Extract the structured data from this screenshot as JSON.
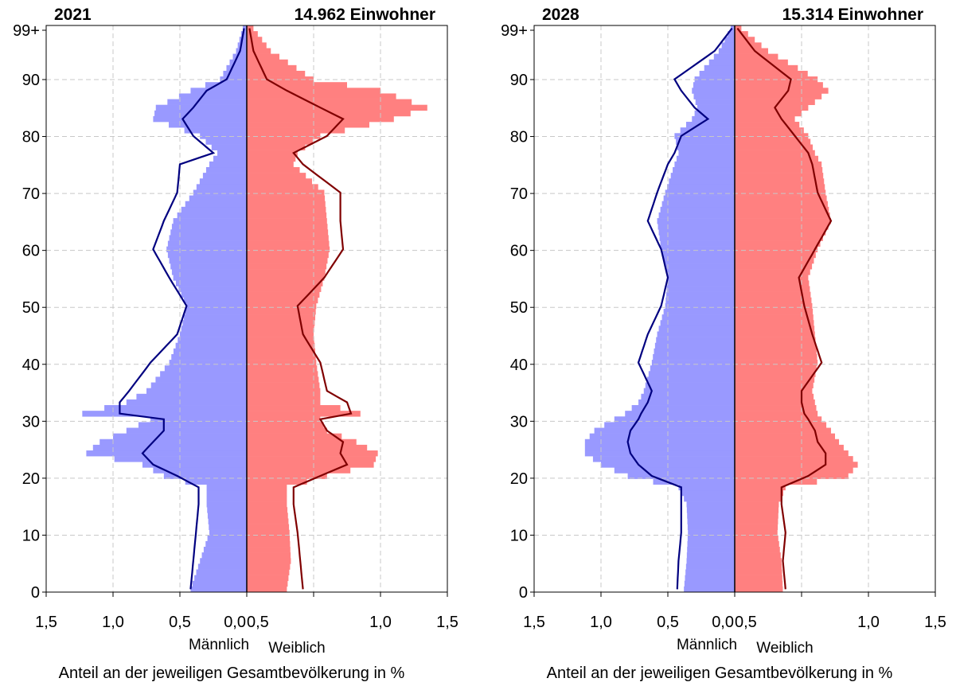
{
  "chart_data": [
    {
      "type": "population-pyramid",
      "year": "2021",
      "population_label": "14.962 Einwohner",
      "xlabel": "Anteil an der jeweiligen Gesamtbevölkerung in %",
      "male_label": "Männlich",
      "female_label": "Weiblich",
      "x_tick_labels": [
        "1,5",
        "1,0",
        "0,5",
        "0,0",
        "0,5",
        "1,0",
        "1,5"
      ],
      "y_tick_labels": [
        {
          "age": 0,
          "label": "0"
        },
        {
          "age": 10,
          "label": "10"
        },
        {
          "age": 20,
          "label": "20"
        },
        {
          "age": 30,
          "label": "30"
        },
        {
          "age": 40,
          "label": "40"
        },
        {
          "age": 50,
          "label": "50"
        },
        {
          "age": 60,
          "label": "60"
        },
        {
          "age": 70,
          "label": "70"
        },
        {
          "age": 80,
          "label": "80"
        },
        {
          "age": 90,
          "label": "90"
        },
        {
          "age": 99,
          "label": "99+"
        }
      ],
      "xlim": [
        -1.5,
        1.5
      ],
      "ylim": [
        0,
        99
      ],
      "grid": true,
      "colors": {
        "male_bar": "#9999ff",
        "female_bar": "#ff8080",
        "male_line": "#000080",
        "female_line": "#800000"
      },
      "ages_key": [
        0,
        5,
        10,
        15,
        18,
        20,
        22,
        24,
        26,
        28,
        30,
        31,
        33,
        35,
        40,
        45,
        50,
        55,
        60,
        65,
        70,
        75,
        77,
        80,
        83,
        85,
        88,
        90,
        95,
        99
      ],
      "male_bars_key": [
        0.42,
        0.35,
        0.28,
        0.3,
        0.3,
        0.62,
        0.78,
        1.2,
        1.1,
        0.9,
        0.72,
        1.23,
        0.9,
        0.75,
        0.58,
        0.5,
        0.45,
        0.55,
        0.6,
        0.55,
        0.4,
        0.28,
        0.22,
        0.35,
        0.7,
        0.68,
        0.42,
        0.2,
        0.08,
        0.03
      ],
      "female_bars_key": [
        0.3,
        0.33,
        0.32,
        0.3,
        0.3,
        0.6,
        0.95,
        0.98,
        0.82,
        0.6,
        0.55,
        0.85,
        0.55,
        0.55,
        0.52,
        0.5,
        0.52,
        0.58,
        0.62,
        0.6,
        0.58,
        0.35,
        0.38,
        0.55,
        1.1,
        1.35,
        1.0,
        0.5,
        0.18,
        0.05
      ],
      "ages_line_key": [
        0,
        5,
        10,
        15,
        18,
        20,
        22,
        24,
        26,
        28,
        30,
        31,
        33,
        35,
        40,
        45,
        50,
        55,
        60,
        65,
        70,
        75,
        77,
        80,
        83,
        85,
        88,
        90,
        95,
        99
      ],
      "male_line_key": [
        0.42,
        0.4,
        0.38,
        0.36,
        0.36,
        0.52,
        0.7,
        0.78,
        0.7,
        0.62,
        0.62,
        0.95,
        0.95,
        0.88,
        0.72,
        0.52,
        0.45,
        0.58,
        0.7,
        0.62,
        0.52,
        0.5,
        0.25,
        0.4,
        0.48,
        0.4,
        0.3,
        0.15,
        0.05,
        0.02
      ],
      "female_line_key": [
        0.42,
        0.4,
        0.38,
        0.35,
        0.35,
        0.55,
        0.75,
        0.7,
        0.72,
        0.6,
        0.55,
        0.78,
        0.75,
        0.6,
        0.55,
        0.42,
        0.38,
        0.58,
        0.72,
        0.7,
        0.7,
        0.42,
        0.35,
        0.6,
        0.72,
        0.55,
        0.3,
        0.15,
        0.05,
        0.02
      ]
    },
    {
      "type": "population-pyramid",
      "year": "2028",
      "population_label": "15.314 Einwohner",
      "xlabel": "Anteil an der jeweiligen Gesamtbevölkerung in %",
      "male_label": "Männlich",
      "female_label": "Weiblich",
      "x_tick_labels": [
        "1,5",
        "1,0",
        "0,5",
        "0,0",
        "0,5",
        "1,0",
        "1,5"
      ],
      "y_tick_labels": [
        {
          "age": 0,
          "label": "0"
        },
        {
          "age": 10,
          "label": "10"
        },
        {
          "age": 20,
          "label": "20"
        },
        {
          "age": 30,
          "label": "30"
        },
        {
          "age": 40,
          "label": "40"
        },
        {
          "age": 50,
          "label": "50"
        },
        {
          "age": 60,
          "label": "60"
        },
        {
          "age": 70,
          "label": "70"
        },
        {
          "age": 80,
          "label": "80"
        },
        {
          "age": 90,
          "label": "90"
        },
        {
          "age": 99,
          "label": "99+"
        }
      ],
      "xlim": [
        -1.5,
        1.5
      ],
      "ylim": [
        0,
        99
      ],
      "grid": true,
      "colors": {
        "male_bar": "#9999ff",
        "female_bar": "#ff8080",
        "male_line": "#000080",
        "female_line": "#800000"
      },
      "ages_key": [
        0,
        5,
        10,
        15,
        18,
        20,
        22,
        24,
        26,
        28,
        30,
        31,
        33,
        35,
        40,
        45,
        50,
        55,
        60,
        65,
        70,
        75,
        77,
        80,
        83,
        85,
        88,
        90,
        95,
        99
      ],
      "male_bars_key": [
        0.38,
        0.36,
        0.35,
        0.36,
        0.42,
        0.8,
        1.0,
        1.12,
        1.12,
        1.05,
        0.9,
        0.82,
        0.72,
        0.68,
        0.62,
        0.58,
        0.52,
        0.5,
        0.55,
        0.58,
        0.52,
        0.45,
        0.42,
        0.45,
        0.32,
        0.28,
        0.32,
        0.3,
        0.12,
        0.03
      ],
      "female_bars_key": [
        0.36,
        0.35,
        0.32,
        0.33,
        0.38,
        0.85,
        0.92,
        0.85,
        0.78,
        0.72,
        0.65,
        0.62,
        0.6,
        0.58,
        0.62,
        0.6,
        0.58,
        0.55,
        0.62,
        0.72,
        0.68,
        0.65,
        0.6,
        0.55,
        0.45,
        0.55,
        0.7,
        0.62,
        0.25,
        0.05
      ],
      "ages_line_key": [
        0,
        5,
        10,
        15,
        18,
        20,
        22,
        24,
        26,
        28,
        30,
        31,
        33,
        35,
        40,
        45,
        50,
        55,
        60,
        65,
        70,
        75,
        77,
        80,
        83,
        85,
        88,
        90,
        95,
        99
      ],
      "male_line_key": [
        0.43,
        0.42,
        0.4,
        0.4,
        0.4,
        0.62,
        0.72,
        0.78,
        0.8,
        0.78,
        0.72,
        0.7,
        0.65,
        0.62,
        0.72,
        0.65,
        0.55,
        0.5,
        0.55,
        0.65,
        0.58,
        0.5,
        0.45,
        0.4,
        0.2,
        0.3,
        0.4,
        0.45,
        0.15,
        0.02
      ],
      "female_line_key": [
        0.38,
        0.36,
        0.38,
        0.35,
        0.35,
        0.55,
        0.68,
        0.68,
        0.62,
        0.6,
        0.55,
        0.52,
        0.5,
        0.5,
        0.65,
        0.58,
        0.52,
        0.48,
        0.6,
        0.72,
        0.62,
        0.58,
        0.55,
        0.45,
        0.35,
        0.3,
        0.4,
        0.42,
        0.15,
        0.02
      ]
    }
  ]
}
